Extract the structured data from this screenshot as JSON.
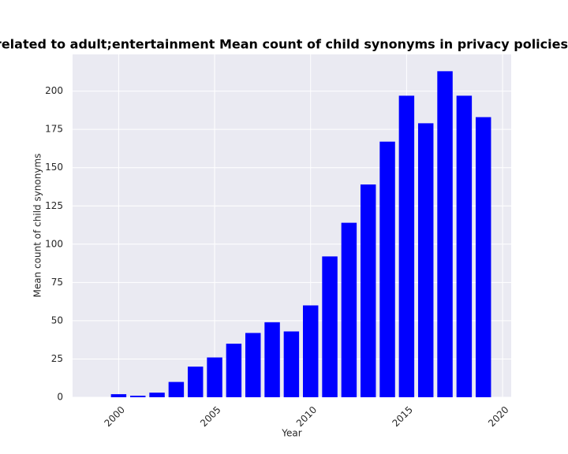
{
  "chart_data": {
    "type": "bar",
    "title": "categories are related to adult;entertainment Mean count of child synonyms in privacy policies",
    "x_label": "Year",
    "y_label": "Mean count of child synonyms",
    "x": [
      2000,
      2001,
      2002,
      2003,
      2004,
      2005,
      2006,
      2007,
      2008,
      2009,
      2010,
      2011,
      2012,
      2013,
      2014,
      2015,
      2016,
      2017,
      2018,
      2019
    ],
    "values": [
      2,
      1,
      3,
      10,
      20,
      26,
      35,
      42,
      49,
      43,
      60,
      92,
      114,
      139,
      167,
      197,
      179,
      213,
      197,
      183
    ],
    "color": "#0000ff",
    "xlim": [
      1997.6,
      2020.45
    ],
    "xticks": [
      2000,
      2005,
      2010,
      2015,
      2020
    ],
    "ylim": [
      0,
      224
    ],
    "yticks": [
      0,
      25,
      50,
      75,
      100,
      125,
      150,
      175,
      200
    ],
    "grid": true
  }
}
